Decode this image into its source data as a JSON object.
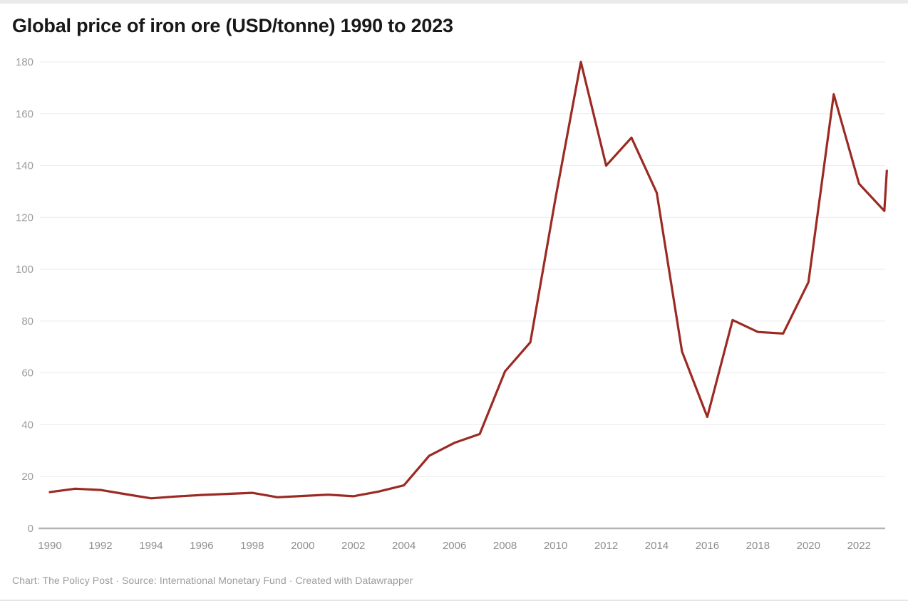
{
  "title": "Global price of iron ore (USD/tonne) 1990 to 2023",
  "footer": "Chart: The Policy Post · Source: International Monetary Fund · Created with Datawrapper",
  "colors": {
    "line": "#9b2a23",
    "gridline": "#ececec",
    "axis_line": "#b4b4b4",
    "y_tick_label": "#9c9c9c",
    "x_tick_label": "#8e8e8e",
    "title_text": "#181818",
    "footer_text": "#9c9c9c"
  },
  "chart_data": {
    "type": "line",
    "title": "Global price of iron ore (USD/tonne) 1990 to 2023",
    "series_name": "Iron ore price (USD/tonne)",
    "xlabel": "",
    "ylabel": "",
    "grid": true,
    "legend": "none",
    "xlim": [
      1990,
      2023.1
    ],
    "ylim": [
      0,
      180
    ],
    "y_ticks": [
      0,
      20,
      40,
      60,
      80,
      100,
      120,
      140,
      160,
      180
    ],
    "x_ticks": [
      1990,
      1992,
      1994,
      1996,
      1998,
      2000,
      2002,
      2004,
      2006,
      2008,
      2010,
      2012,
      2014,
      2016,
      2018,
      2020,
      2022
    ],
    "points": [
      {
        "x": 1990,
        "y": 14.0
      },
      {
        "x": 1991,
        "y": 15.3
      },
      {
        "x": 1992,
        "y": 14.8
      },
      {
        "x": 1993,
        "y": 13.2
      },
      {
        "x": 1994,
        "y": 11.6
      },
      {
        "x": 1995,
        "y": 12.3
      },
      {
        "x": 1996,
        "y": 12.9
      },
      {
        "x": 1997,
        "y": 13.3
      },
      {
        "x": 1998,
        "y": 13.7
      },
      {
        "x": 1999,
        "y": 12.0
      },
      {
        "x": 2000,
        "y": 12.5
      },
      {
        "x": 2001,
        "y": 13.0
      },
      {
        "x": 2002,
        "y": 12.4
      },
      {
        "x": 2003,
        "y": 14.2
      },
      {
        "x": 2004,
        "y": 16.6
      },
      {
        "x": 2005,
        "y": 28.0
      },
      {
        "x": 2006,
        "y": 33.0
      },
      {
        "x": 2007,
        "y": 36.4
      },
      {
        "x": 2008,
        "y": 60.6
      },
      {
        "x": 2009,
        "y": 71.8
      },
      {
        "x": 2010,
        "y": 127.5
      },
      {
        "x": 2011,
        "y": 180.0
      },
      {
        "x": 2012,
        "y": 140.0
      },
      {
        "x": 2013,
        "y": 150.8
      },
      {
        "x": 2014,
        "y": 129.5
      },
      {
        "x": 2015,
        "y": 68.3
      },
      {
        "x": 2016,
        "y": 43.0
      },
      {
        "x": 2017,
        "y": 80.4
      },
      {
        "x": 2018,
        "y": 75.8
      },
      {
        "x": 2019,
        "y": 75.2
      },
      {
        "x": 2020,
        "y": 95.0
      },
      {
        "x": 2021,
        "y": 167.5
      },
      {
        "x": 2022,
        "y": 133.0
      },
      {
        "x": 2023,
        "y": 122.5
      },
      {
        "x": 2023.1,
        "y": 138.0
      }
    ]
  }
}
